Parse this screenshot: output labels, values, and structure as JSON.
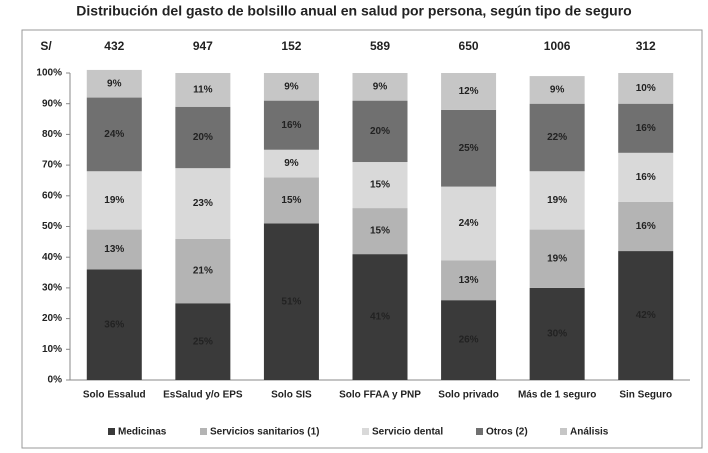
{
  "chart_data": {
    "type": "stacked_bar",
    "title": "Distribución del gasto de bolsillo anual en salud por persona, según tipo de seguro",
    "totals": {
      "label": "S/",
      "values": [
        432,
        947,
        152,
        589,
        650,
        1006,
        312
      ]
    },
    "categories": [
      "Solo Essalud",
      "EsSalud y/o EPS",
      "Solo SIS",
      "Solo FFAA y PNP",
      "Solo privado",
      "Más de 1 seguro",
      "Sin Seguro"
    ],
    "series": [
      {
        "name": "Medicinas",
        "color": "#3a3a3a",
        "values": [
          36,
          25,
          51,
          41,
          26,
          30,
          42
        ],
        "value_labels": [
          "36%",
          "25%",
          "51%",
          "41%",
          "26%",
          "30%",
          "42%"
        ]
      },
      {
        "name": "Servicios sanitarios (1)",
        "color": "#b4b4b4",
        "values": [
          13,
          21,
          15,
          15,
          13,
          19,
          16
        ],
        "value_labels": [
          "13%",
          "21%",
          "15%",
          "15%",
          "13%",
          "19%",
          "16%"
        ]
      },
      {
        "name": "Servicio dental",
        "color": "#d9d9d9",
        "values": [
          19,
          23,
          9,
          15,
          24,
          19,
          16
        ],
        "value_labels": [
          "19%",
          "23%",
          "9%",
          "15%",
          "24%",
          "19%",
          "16%"
        ]
      },
      {
        "name": "Otros (2)",
        "color": "#707070",
        "values": [
          24,
          20,
          16,
          20,
          25,
          22,
          16
        ],
        "value_labels": [
          "24%",
          "20%",
          "16%",
          "20%",
          "25%",
          "22%",
          "16%"
        ]
      },
      {
        "name": "Análisis",
        "color": "#c6c6c6",
        "values": [
          9,
          11,
          9,
          9,
          12,
          9,
          10
        ],
        "value_labels": [
          "9%",
          "11%",
          "9%",
          "9%",
          "12%",
          "9%",
          "10%"
        ]
      }
    ],
    "ylim": [
      0,
      100
    ],
    "yticks": [
      {
        "value": 0,
        "label": "0%"
      },
      {
        "value": 10,
        "label": "10%"
      },
      {
        "value": 20,
        "label": "20%"
      },
      {
        "value": 30,
        "label": "30%"
      },
      {
        "value": 40,
        "label": "40%"
      },
      {
        "value": 50,
        "label": "50%"
      },
      {
        "value": 60,
        "label": "60%"
      },
      {
        "value": 70,
        "label": "70%"
      },
      {
        "value": 80,
        "label": "80%"
      },
      {
        "value": 90,
        "label": "90%"
      },
      {
        "value": 100,
        "label": "100%"
      }
    ],
    "legend": "bottom"
  }
}
